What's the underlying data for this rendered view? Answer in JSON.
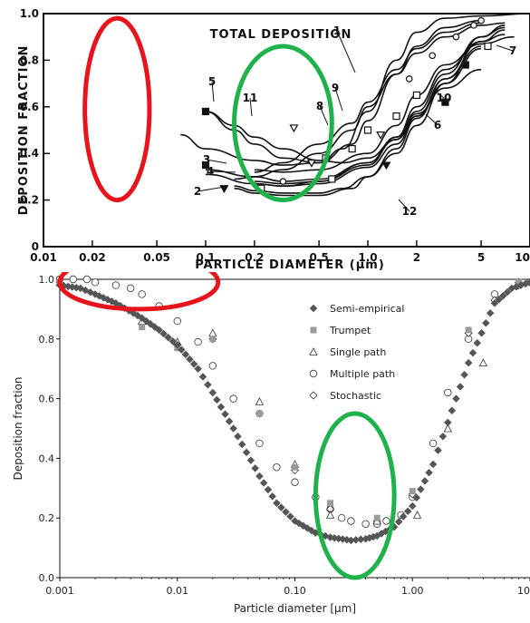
{
  "chart_data": [
    {
      "type": "line",
      "title": "TOTAL DEPOSITION",
      "xlabel": "PARTICLE DIAMETER (μm)",
      "ylabel": "DEPOSITION FRACTION",
      "xscale": "log",
      "xlim": [
        0.01,
        10
      ],
      "ylim": [
        0,
        1.0
      ],
      "x_ticks": [
        "0.01",
        "0.02",
        "0.05",
        "0.1",
        "0.2",
        "0.5",
        "1.0",
        "2",
        "5",
        "10"
      ],
      "y_ticks": [
        "0",
        "0.2",
        "0.4",
        "0.6",
        "0.8",
        "1.0"
      ],
      "curve_labels": [
        "1",
        "2",
        "3",
        "4",
        "5",
        "6",
        "7",
        "8",
        "9",
        "10",
        "11",
        "12"
      ],
      "series": [
        {
          "name": "1",
          "x": [
            0.07,
            0.1,
            0.2,
            0.3,
            0.5,
            0.7,
            1.0,
            1.5,
            2,
            3,
            5,
            10
          ],
          "y": [
            0.48,
            0.42,
            0.37,
            0.35,
            0.36,
            0.42,
            0.58,
            0.8,
            0.92,
            0.98,
            0.99,
            1.0
          ]
        },
        {
          "name": "2",
          "x": [
            0.15,
            0.2,
            0.3,
            0.5,
            0.7,
            1.0,
            1.5,
            2,
            3,
            5,
            7
          ],
          "y": [
            0.26,
            0.24,
            0.23,
            0.23,
            0.25,
            0.3,
            0.4,
            0.52,
            0.7,
            0.9,
            0.95
          ]
        },
        {
          "name": "3",
          "x": [
            0.1,
            0.2,
            0.3,
            0.5,
            1.0,
            1.5,
            2,
            3,
            5,
            7
          ],
          "y": [
            0.33,
            0.3,
            0.28,
            0.29,
            0.36,
            0.46,
            0.58,
            0.74,
            0.9,
            0.94
          ]
        },
        {
          "name": "4",
          "x": [
            0.1,
            0.2,
            0.3,
            0.5,
            1.0,
            1.5,
            2,
            3,
            5,
            7
          ],
          "y": [
            0.31,
            0.27,
            0.26,
            0.27,
            0.34,
            0.44,
            0.56,
            0.72,
            0.88,
            0.93
          ]
        },
        {
          "name": "5",
          "x": [
            0.1,
            0.15,
            0.2,
            0.3,
            0.5,
            0.8,
            1.0,
            1.5,
            2,
            3,
            5
          ],
          "y": [
            0.58,
            0.5,
            0.44,
            0.38,
            0.36,
            0.44,
            0.54,
            0.74,
            0.86,
            0.94,
            0.97
          ]
        },
        {
          "name": "6",
          "x": [
            0.2,
            0.3,
            0.5,
            1.0,
            1.5,
            2,
            3,
            5,
            7
          ],
          "y": [
            0.28,
            0.27,
            0.28,
            0.35,
            0.47,
            0.6,
            0.76,
            0.88,
            0.91
          ]
        },
        {
          "name": "7",
          "x": [
            0.2,
            0.3,
            0.5,
            1.0,
            1.5,
            2,
            3,
            5,
            8
          ],
          "y": [
            0.33,
            0.32,
            0.33,
            0.4,
            0.52,
            0.65,
            0.78,
            0.87,
            0.9
          ]
        },
        {
          "name": "8",
          "x": [
            0.15,
            0.2,
            0.3,
            0.5,
            0.8,
            1.0,
            1.5,
            2,
            3,
            5,
            7
          ],
          "y": [
            0.29,
            0.3,
            0.33,
            0.4,
            0.5,
            0.6,
            0.74,
            0.83,
            0.9,
            0.95,
            0.96
          ]
        },
        {
          "name": "9",
          "x": [
            0.2,
            0.3,
            0.5,
            0.8,
            1.0,
            1.5,
            2,
            3,
            5
          ],
          "y": [
            0.32,
            0.36,
            0.44,
            0.53,
            0.62,
            0.76,
            0.85,
            0.92,
            0.96
          ]
        },
        {
          "name": "10",
          "x": [
            0.2,
            0.3,
            0.5,
            1.0,
            1.5,
            2,
            3,
            5
          ],
          "y": [
            0.27,
            0.26,
            0.28,
            0.36,
            0.47,
            0.57,
            0.68,
            0.76
          ]
        },
        {
          "name": "11",
          "x": [
            0.1,
            0.15,
            0.2,
            0.3,
            0.5,
            0.7,
            1.0,
            1.5,
            2,
            3,
            5
          ],
          "y": [
            0.58,
            0.52,
            0.47,
            0.42,
            0.37,
            0.36,
            0.38,
            0.46,
            0.56,
            0.7,
            0.85
          ]
        },
        {
          "name": "12",
          "x": [
            0.15,
            0.2,
            0.3,
            0.5,
            0.8,
            1.0,
            1.5,
            2,
            3,
            5
          ],
          "y": [
            0.25,
            0.23,
            0.22,
            0.22,
            0.25,
            0.3,
            0.42,
            0.55,
            0.72,
            0.86
          ]
        }
      ],
      "markers": [
        {
          "x": 0.1,
          "y": 0.58,
          "symbol": "filled-square"
        },
        {
          "x": 0.13,
          "y": 0.25,
          "symbol": "filled-triangle"
        },
        {
          "x": 0.1,
          "y": 0.35,
          "symbol": "filled-square"
        },
        {
          "x": 0.22,
          "y": 0.25,
          "symbol": "open-square"
        },
        {
          "x": 0.3,
          "y": 0.28,
          "symbol": "open-circle"
        },
        {
          "x": 0.35,
          "y": 0.51,
          "symbol": "open-triangle"
        },
        {
          "x": 0.45,
          "y": 0.36,
          "symbol": "open-triangle"
        },
        {
          "x": 0.55,
          "y": 0.38,
          "symbol": "open-square"
        },
        {
          "x": 0.6,
          "y": 0.29,
          "symbol": "open-square"
        },
        {
          "x": 0.8,
          "y": 0.42,
          "symbol": "open-square"
        },
        {
          "x": 1.0,
          "y": 0.5,
          "symbol": "open-square"
        },
        {
          "x": 1.2,
          "y": 0.48,
          "symbol": "open-triangle"
        },
        {
          "x": 1.3,
          "y": 0.35,
          "symbol": "filled-triangle"
        },
        {
          "x": 1.5,
          "y": 0.56,
          "symbol": "open-square"
        },
        {
          "x": 1.8,
          "y": 0.72,
          "symbol": "open-circle"
        },
        {
          "x": 2.0,
          "y": 0.65,
          "symbol": "open-square"
        },
        {
          "x": 2.5,
          "y": 0.82,
          "symbol": "open-circle"
        },
        {
          "x": 3.0,
          "y": 0.62,
          "symbol": "filled-square"
        },
        {
          "x": 3.5,
          "y": 0.9,
          "symbol": "open-circle"
        },
        {
          "x": 4.0,
          "y": 0.78,
          "symbol": "filled-square"
        },
        {
          "x": 4.5,
          "y": 0.95,
          "symbol": "open-circle"
        },
        {
          "x": 5.5,
          "y": 0.86,
          "symbol": "open-square"
        },
        {
          "x": 5.0,
          "y": 0.97,
          "symbol": "open-circle"
        }
      ],
      "annotations": [
        {
          "shape": "ellipse",
          "color": "#e8141c",
          "x_range": [
            0.018,
            0.045
          ],
          "y_range": [
            0.2,
            0.98
          ]
        },
        {
          "shape": "ellipse",
          "color": "#1fb24a",
          "x_range": [
            0.15,
            0.6
          ],
          "y_range": [
            0.2,
            0.86
          ]
        }
      ]
    },
    {
      "type": "scatter",
      "xlabel": "Particle diameter [μm]",
      "ylabel": "Deposition fraction",
      "xscale": "log",
      "xlim": [
        0.001,
        10
      ],
      "ylim": [
        0,
        1.0
      ],
      "x_ticks": [
        "0.001",
        "0.01",
        "0.10",
        "1.00",
        "10"
      ],
      "y_ticks": [
        "0.0",
        "0.2",
        "0.4",
        "0.6",
        "0.8",
        "1.0"
      ],
      "legend_position": "top-right",
      "legend": [
        "Semi-empirical",
        "Trumpet",
        "Single path",
        "Multiple path",
        "Stochastic"
      ],
      "series": [
        {
          "name": "Semi-empirical",
          "marker": "diamond-filled",
          "x": [
            0.001,
            0.0015,
            0.002,
            0.003,
            0.005,
            0.007,
            0.01,
            0.015,
            0.02,
            0.03,
            0.05,
            0.07,
            0.1,
            0.15,
            0.2,
            0.3,
            0.4,
            0.5,
            0.7,
            1.0,
            1.5,
            2,
            3,
            5,
            7,
            10
          ],
          "y": [
            0.98,
            0.97,
            0.95,
            0.92,
            0.87,
            0.83,
            0.78,
            0.7,
            0.62,
            0.5,
            0.34,
            0.25,
            0.19,
            0.15,
            0.135,
            0.125,
            0.13,
            0.14,
            0.17,
            0.24,
            0.38,
            0.52,
            0.72,
            0.92,
            0.97,
            0.99
          ]
        },
        {
          "name": "Trumpet",
          "marker": "square-filled",
          "x": [
            0.001,
            0.005,
            0.01,
            0.02,
            0.05,
            0.1,
            0.2,
            0.5,
            1.0,
            3,
            8
          ],
          "y": [
            0.99,
            0.84,
            0.77,
            0.8,
            0.55,
            0.37,
            0.25,
            0.2,
            0.29,
            0.83,
            0.99
          ]
        },
        {
          "name": "Single path",
          "marker": "triangle-open",
          "x": [
            0.001,
            0.005,
            0.01,
            0.02,
            0.05,
            0.1,
            0.2,
            0.5,
            1.1,
            2.0,
            4.0,
            8.0
          ],
          "y": [
            0.99,
            0.86,
            0.79,
            0.82,
            0.59,
            0.38,
            0.21,
            0.19,
            0.21,
            0.5,
            0.72,
            0.99
          ]
        },
        {
          "name": "Multiple path",
          "marker": "circle-open",
          "x": [
            0.001,
            0.0013,
            0.0017,
            0.002,
            0.003,
            0.004,
            0.005,
            0.007,
            0.01,
            0.015,
            0.02,
            0.03,
            0.05,
            0.07,
            0.1,
            0.15,
            0.2,
            0.25,
            0.3,
            0.4,
            0.5,
            0.6,
            0.8,
            1.0,
            1.5,
            2.0,
            3.0,
            5.0,
            8.0,
            10
          ],
          "y": [
            1.0,
            1.0,
            1.0,
            0.99,
            0.98,
            0.97,
            0.95,
            0.91,
            0.86,
            0.79,
            0.71,
            0.6,
            0.45,
            0.37,
            0.32,
            0.27,
            0.23,
            0.2,
            0.19,
            0.18,
            0.18,
            0.19,
            0.21,
            0.27,
            0.45,
            0.62,
            0.8,
            0.95,
            0.98,
            0.99
          ]
        },
        {
          "name": "Stochastic",
          "marker": "diamond-open",
          "x": [
            0.001,
            0.005,
            0.01,
            0.02,
            0.05,
            0.1,
            0.2,
            0.5,
            1.0,
            3,
            5,
            8
          ],
          "y": [
            0.99,
            0.85,
            0.78,
            0.8,
            0.55,
            0.36,
            0.23,
            0.19,
            0.28,
            0.82,
            0.93,
            0.99
          ]
        }
      ],
      "annotations": [
        {
          "shape": "ellipse",
          "color": "#e8141c",
          "x_range": [
            0.001,
            0.0045
          ],
          "y_range": [
            0.9,
            1.08
          ]
        },
        {
          "shape": "ellipse",
          "color": "#1fb24a",
          "x_range": [
            0.15,
            0.7
          ],
          "y_range": [
            0.0,
            0.55
          ]
        }
      ]
    }
  ]
}
